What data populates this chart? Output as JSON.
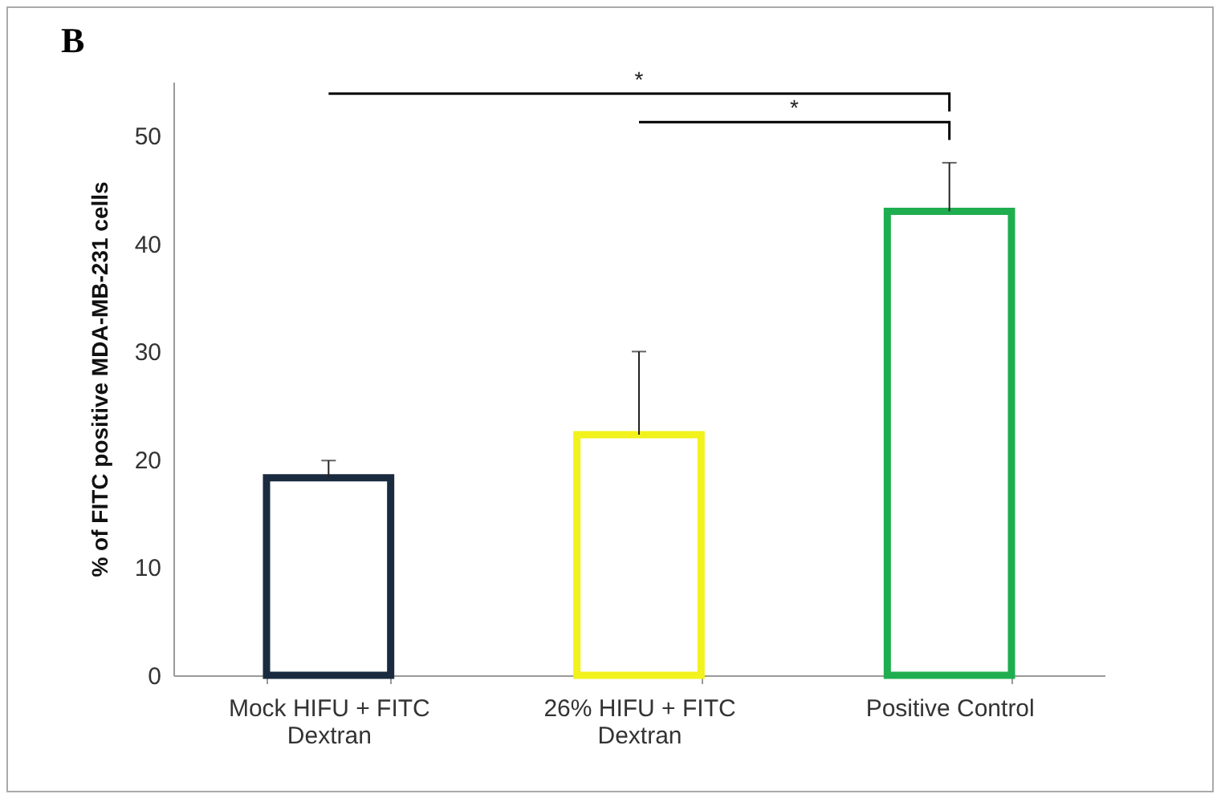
{
  "chart_data": {
    "type": "bar",
    "title": "B",
    "ylabel": "% of FITC positive MDA-MB-231 cells",
    "categories": [
      "Mock HIFU + FITC Dextran",
      "26% HIFU + FITC Dextran",
      "Positive Control"
    ],
    "values": [
      18.3,
      22.3,
      43.0
    ],
    "errors": [
      1.6,
      7.7,
      4.5
    ],
    "colors": [
      "#1a2a3f",
      "#f2f21c",
      "#1fae4f"
    ],
    "ylim": [
      0,
      55
    ],
    "yticks": [
      0,
      10,
      20,
      30,
      40,
      50
    ],
    "grid": false,
    "annotations": [
      "*",
      "*"
    ]
  }
}
